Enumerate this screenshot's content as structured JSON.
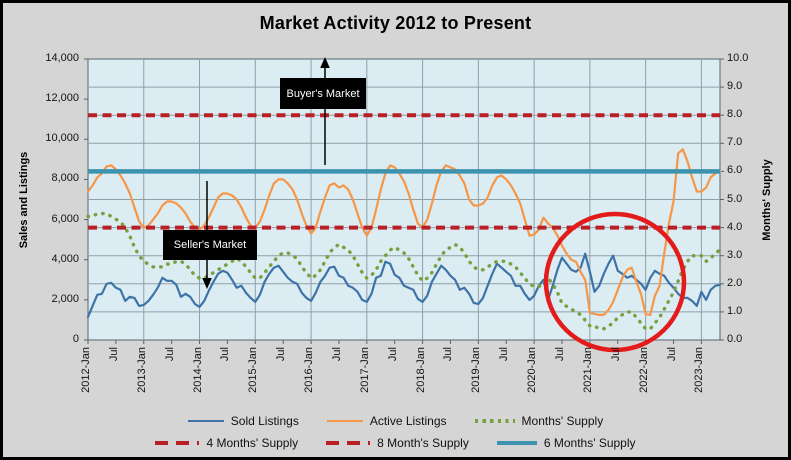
{
  "title": "Market Activity 2012 to Present",
  "colors": {
    "background": "#D5D5D5",
    "plot_background": "#DBEDF3",
    "grid": "#8FA0A8",
    "axis": "#55656E",
    "sold": "#3E73A8",
    "active": "#F79646",
    "months_supply": "#79A03E",
    "reference_red": "#B92025",
    "reference_teal": "#3D93AD",
    "ellipse": "#E31B1B",
    "annotation_bg": "#000000",
    "annotation_text": "#FFFFFF"
  },
  "annotations": {
    "buyers_market": {
      "label": "Buyer's Market",
      "arrow_direction": "up"
    },
    "sellers_market": {
      "label": "Seller's Market",
      "arrow_direction": "down"
    },
    "highlight_circle": {
      "shape": "red-ellipse",
      "covers": "2020-Jul to 2022-Aug"
    }
  },
  "legend": {
    "rows": [
      [
        {
          "label": "Sold Listings",
          "swatch": "sold"
        },
        {
          "label": "Active Listings",
          "swatch": "active"
        },
        {
          "label": "Months' Supply",
          "swatch": "supply_dots"
        }
      ],
      [
        {
          "label": "4 Months' Supply",
          "swatch": "dashed_red"
        },
        {
          "label": "8 Month's Supply",
          "swatch": "dashed_red"
        },
        {
          "label": "6 Months' Supply",
          "swatch": "solid_teal"
        }
      ]
    ]
  },
  "chart_data": {
    "type": "line",
    "frequency": "monthly",
    "x_start": "2012-Jan",
    "x_end": "2023-May",
    "axes": {
      "left": {
        "title": "Sales and Listings",
        "min": 0,
        "max": 14000,
        "tick_step": 2000,
        "tick_labels": [
          "0",
          "2,000",
          "4,000",
          "6,000",
          "8,000",
          "10,000",
          "12,000",
          "14,000"
        ]
      },
      "right": {
        "title": "Months' Supply",
        "min": 0,
        "max": 10,
        "tick_step": 1,
        "tick_labels": [
          "0.0",
          "1.0",
          "2.0",
          "3.0",
          "4.0",
          "5.0",
          "6.0",
          "7.0",
          "8.0",
          "9.0",
          "10.0"
        ]
      },
      "x": {
        "tick_interval_months": 6,
        "gridline_interval_months": 12,
        "tick_labels": [
          "2012-Jan",
          "Jul",
          "2013-Jan",
          "Jul",
          "2014-Jan",
          "Jul",
          "2015-Jan",
          "Jul",
          "2016-Jan",
          "Jul",
          "2017-Jan",
          "Jul",
          "2018-Jan",
          "Jul",
          "2019-Jan",
          "Jul",
          "2020-Jan",
          "Jul",
          "2021-Jan",
          "Jul",
          "2022-Jan",
          "Jul",
          "2023-Jan"
        ]
      }
    },
    "series": [
      {
        "name": "Sold Listings",
        "axis": "left",
        "color_key": "sold",
        "style": "solid",
        "values": [
          1150,
          1700,
          2250,
          2300,
          2800,
          2850,
          2600,
          2500,
          1950,
          2150,
          2100,
          1700,
          1750,
          1950,
          2250,
          2600,
          3100,
          2950,
          2950,
          2750,
          2150,
          2300,
          2150,
          1800,
          1650,
          1950,
          2450,
          2900,
          3300,
          3450,
          3350,
          3000,
          2600,
          2700,
          2350,
          2100,
          1900,
          2250,
          2900,
          3300,
          3600,
          3700,
          3400,
          3100,
          2900,
          2800,
          2350,
          2100,
          1950,
          2350,
          2900,
          3200,
          3600,
          3650,
          3200,
          3100,
          2700,
          2600,
          2400,
          2000,
          1900,
          2300,
          3100,
          3200,
          3900,
          3800,
          3250,
          3100,
          2700,
          2600,
          2500,
          2050,
          1900,
          2200,
          2900,
          3300,
          3700,
          3500,
          3200,
          3000,
          2500,
          2600,
          2300,
          1850,
          1800,
          2100,
          2700,
          3300,
          3800,
          3600,
          3400,
          3200,
          2700,
          2700,
          2300,
          2000,
          2200,
          2700,
          3000,
          2000,
          2700,
          3500,
          4100,
          3800,
          3500,
          3400,
          3600,
          4300,
          3400,
          2400,
          2700,
          3300,
          3800,
          4200,
          3450,
          3300,
          3100,
          3200,
          3000,
          2800,
          2500,
          3100,
          3450,
          3300,
          3200,
          2850,
          2600,
          2300,
          2100,
          2100,
          1950,
          1700,
          2400,
          2000,
          2500,
          2700,
          2750
        ]
      },
      {
        "name": "Active Listings",
        "axis": "left",
        "color_key": "active",
        "style": "solid",
        "values": [
          7400,
          7700,
          8100,
          8300,
          8650,
          8700,
          8500,
          8200,
          7800,
          7300,
          6600,
          5900,
          5600,
          5700,
          6000,
          6300,
          6700,
          6900,
          6900,
          6800,
          6600,
          6300,
          5900,
          5600,
          5500,
          5700,
          6100,
          6600,
          7100,
          7300,
          7300,
          7200,
          7000,
          6600,
          6100,
          5700,
          5600,
          5900,
          6500,
          7200,
          7800,
          8000,
          8000,
          7800,
          7500,
          7000,
          6300,
          5700,
          5300,
          5600,
          6400,
          7100,
          7700,
          7800,
          7600,
          7700,
          7500,
          7000,
          6300,
          5600,
          5200,
          5600,
          6500,
          7500,
          8300,
          8700,
          8600,
          8300,
          7900,
          7300,
          6500,
          5800,
          5600,
          6000,
          6800,
          7700,
          8400,
          8700,
          8600,
          8500,
          8200,
          7800,
          7000,
          6700,
          6700,
          6800,
          7100,
          7700,
          8100,
          8200,
          8000,
          7700,
          7300,
          6800,
          6000,
          5200,
          5250,
          5500,
          6100,
          5800,
          5600,
          5200,
          4700,
          4300,
          4000,
          3900,
          3400,
          3000,
          1350,
          1300,
          1250,
          1250,
          1500,
          1900,
          2500,
          3100,
          3500,
          3600,
          2900,
          2300,
          1300,
          1250,
          2200,
          2700,
          4300,
          5800,
          6900,
          9300,
          9500,
          8900,
          8100,
          7400,
          7400,
          7600,
          8100,
          8300,
          8400
        ]
      },
      {
        "name": "Months' Supply",
        "axis": "right",
        "color_key": "months_supply",
        "style": "dotted",
        "values": [
          4.4,
          4.4,
          4.5,
          4.5,
          4.5,
          4.4,
          4.3,
          4.2,
          4.0,
          3.7,
          3.3,
          3.0,
          2.8,
          2.7,
          2.6,
          2.6,
          2.6,
          2.7,
          2.7,
          2.8,
          2.8,
          2.7,
          2.5,
          2.3,
          2.2,
          2.2,
          2.3,
          2.4,
          2.5,
          2.6,
          2.7,
          2.8,
          2.9,
          2.8,
          2.6,
          2.4,
          2.2,
          2.2,
          2.4,
          2.6,
          2.8,
          3.0,
          3.1,
          3.1,
          3.0,
          2.9,
          2.6,
          2.4,
          2.2,
          2.3,
          2.5,
          2.8,
          3.1,
          3.3,
          3.4,
          3.3,
          3.2,
          3.0,
          2.7,
          2.4,
          2.2,
          2.3,
          2.5,
          2.8,
          3.0,
          3.2,
          3.3,
          3.2,
          3.1,
          2.9,
          2.6,
          2.3,
          2.1,
          2.2,
          2.4,
          2.7,
          3.0,
          3.2,
          3.3,
          3.4,
          3.3,
          3.1,
          2.8,
          2.6,
          2.5,
          2.5,
          2.6,
          2.7,
          2.8,
          2.8,
          2.8,
          2.7,
          2.6,
          2.4,
          2.2,
          2.0,
          1.9,
          1.9,
          2.0,
          2.2,
          2.0,
          1.7,
          1.3,
          1.2,
          1.1,
          1.0,
          0.9,
          0.7,
          0.5,
          0.5,
          0.4,
          0.4,
          0.5,
          0.6,
          0.8,
          0.9,
          1.0,
          1.0,
          0.8,
          0.6,
          0.4,
          0.4,
          0.6,
          0.8,
          1.1,
          1.4,
          1.7,
          2.1,
          2.5,
          2.8,
          3.0,
          3.0,
          3.0,
          2.8,
          2.9,
          3.1,
          3.2
        ]
      }
    ],
    "reference_lines": [
      {
        "name": "4 Months' Supply",
        "axis": "right",
        "value": 4.0,
        "style": "dashed",
        "color_key": "reference_red"
      },
      {
        "name": "8 Month's Supply",
        "axis": "right",
        "value": 8.0,
        "style": "dashed",
        "color_key": "reference_red"
      },
      {
        "name": "6 Months' Supply",
        "axis": "right",
        "value": 6.0,
        "style": "solid",
        "color_key": "reference_teal"
      }
    ]
  }
}
